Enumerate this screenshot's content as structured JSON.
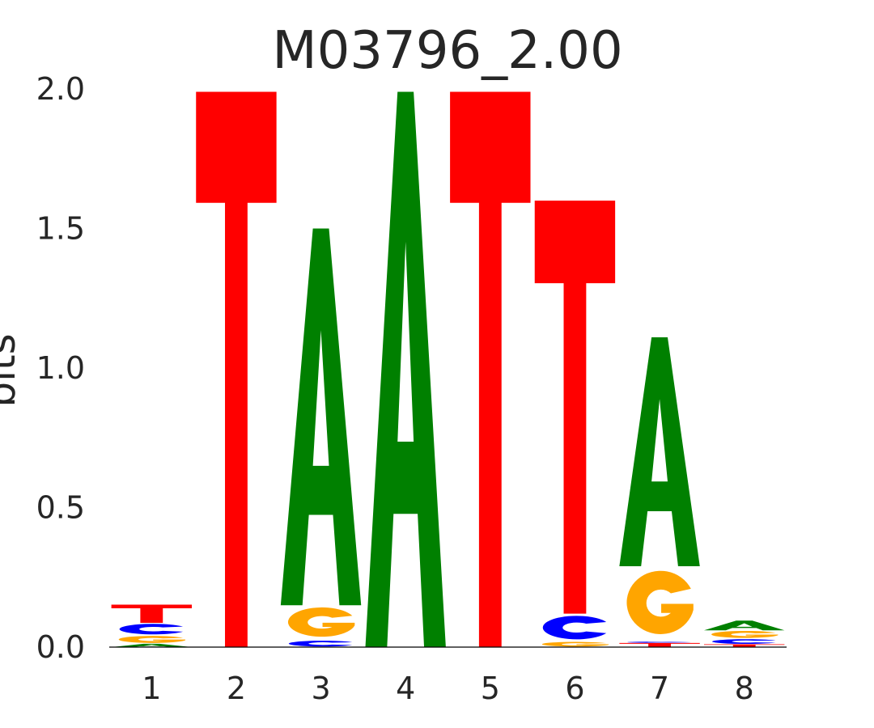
{
  "chart_data": {
    "type": "sequence-logo",
    "title": "M03796_2.00",
    "xlabel": "",
    "ylabel": "bits",
    "ylim": [
      0,
      2.0
    ],
    "yticks": [
      "0.0",
      "0.5",
      "1.0",
      "1.5",
      "2.0"
    ],
    "ytick_values": [
      0,
      0.5,
      1.0,
      1.5,
      2.0
    ],
    "grid": false,
    "positions": [
      "1",
      "2",
      "3",
      "4",
      "5",
      "6",
      "7",
      "8"
    ],
    "colors": {
      "A": "#008000",
      "C": "#0000ff",
      "G": "#ffa500",
      "T": "#ff0000"
    },
    "stacks": [
      [
        {
          "letter": "A",
          "bits": 0.012
        },
        {
          "letter": "G",
          "bits": 0.03
        },
        {
          "letter": "C",
          "bits": 0.045
        },
        {
          "letter": "T",
          "bits": 0.065
        }
      ],
      [
        {
          "letter": "T",
          "bits": 1.99
        }
      ],
      [
        {
          "letter": "C",
          "bits": 0.025
        },
        {
          "letter": "G",
          "bits": 0.125
        },
        {
          "letter": "A",
          "bits": 1.35
        }
      ],
      [
        {
          "letter": "A",
          "bits": 1.99
        }
      ],
      [
        {
          "letter": "T",
          "bits": 1.99
        }
      ],
      [
        {
          "letter": "G",
          "bits": 0.02
        },
        {
          "letter": "C",
          "bits": 0.1
        },
        {
          "letter": "T",
          "bits": 1.48
        }
      ],
      [
        {
          "letter": "T",
          "bits": 0.015
        },
        {
          "letter": "C",
          "bits": 0.005
        },
        {
          "letter": "G",
          "bits": 0.27
        },
        {
          "letter": "A",
          "bits": 0.82
        }
      ],
      [
        {
          "letter": "T",
          "bits": 0.01
        },
        {
          "letter": "C",
          "bits": 0.02
        },
        {
          "letter": "G",
          "bits": 0.03
        },
        {
          "letter": "A",
          "bits": 0.035
        }
      ]
    ]
  }
}
